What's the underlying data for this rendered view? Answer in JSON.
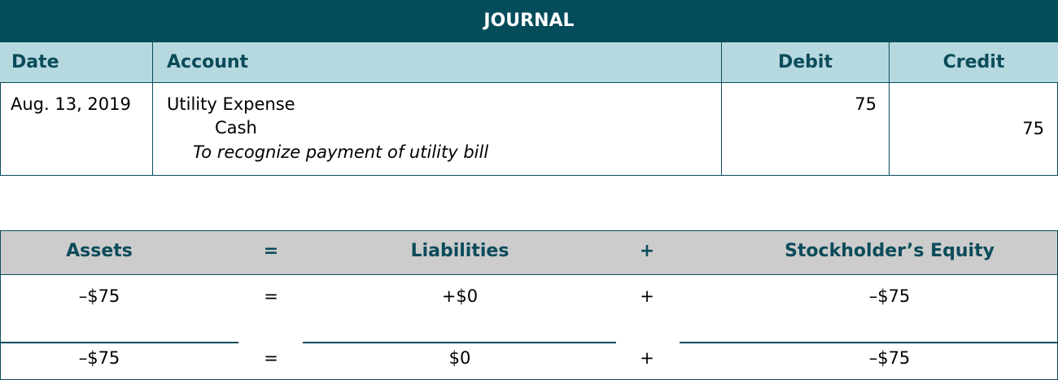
{
  "journal": {
    "title": "JOURNAL",
    "headers": {
      "date": "Date",
      "account": "Account",
      "debit": "Debit",
      "credit": "Credit"
    },
    "entry": {
      "date": "Aug. 13, 2019",
      "debit_account": "Utility Expense",
      "credit_account": "Cash",
      "memo": "To recognize payment of utility bill",
      "debit": "75",
      "credit": "75"
    }
  },
  "equation": {
    "headers": [
      "Assets",
      "=",
      "Liabilities",
      "+",
      "Stockholder’s Equity"
    ],
    "change_row": [
      "–$75",
      "=",
      "+$0",
      "+",
      "–$75"
    ],
    "total_row": [
      "–$75",
      "=",
      "$0",
      "+",
      "–$75"
    ]
  },
  "colors": {
    "title_bg": "#054c5a",
    "header_bg": "#b5d9df",
    "equation_header_bg": "#cccccc",
    "text_accent": "#0b4b5a"
  }
}
